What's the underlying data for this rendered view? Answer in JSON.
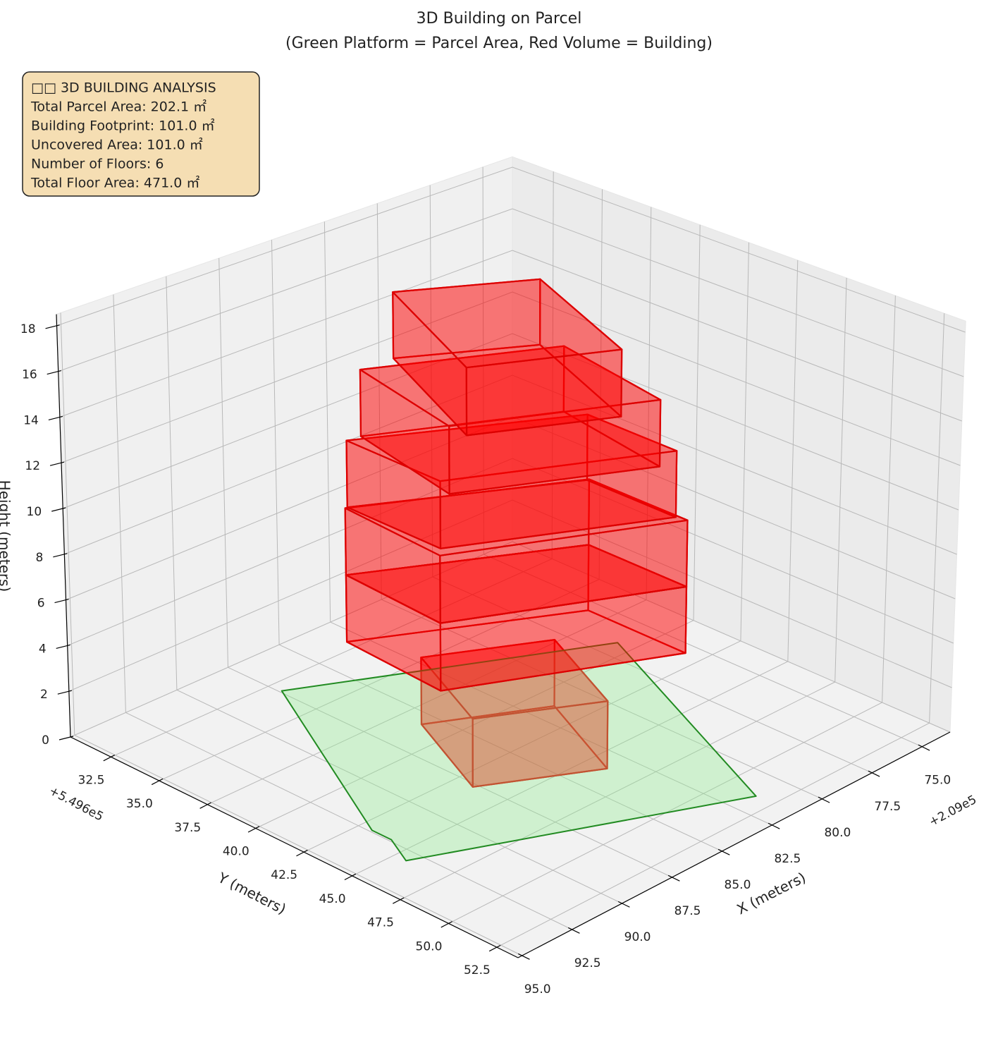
{
  "chart_data": {
    "type": "3d",
    "title": "3D Building on Parcel",
    "subtitle": "(Green Platform = Parcel Area, Red Volume = Building)",
    "info_box": [
      "□□ 3D BUILDING ANALYSIS",
      "Total Parcel Area: 202.1 ㎡",
      "Building Footprint: 101.0 ㎡",
      "Uncovered Area: 101.0 ㎡",
      "Number of Floors: 6",
      "Total Floor Area: 471.0 ㎡"
    ],
    "xlabel": "X (meters)",
    "ylabel": "Y (meters)",
    "zlabel": "Height (meters)",
    "x_offset": "+2.09e5",
    "y_offset": "+5.496e5",
    "xlim": [
      73.6,
      95.2
    ],
    "ylim": [
      30.4,
      53.6
    ],
    "zlim": [
      0,
      18.5
    ],
    "xticks": [
      {
        "value": 75,
        "label": "75.0"
      },
      77.5,
      {
        "value": 80,
        "label": "80.0"
      },
      82.5,
      {
        "value": 85,
        "label": "85.0"
      },
      87.5,
      {
        "value": 90,
        "label": "90.0"
      },
      92.5,
      {
        "value": 95,
        "label": "95.0"
      }
    ],
    "yticks": [
      32.5,
      {
        "value": 35,
        "label": "35.0"
      },
      37.5,
      {
        "value": 40,
        "label": "40.0"
      },
      42.5,
      {
        "value": 45,
        "label": "45.0"
      },
      47.5,
      {
        "value": 50,
        "label": "50.0"
      },
      52.5
    ],
    "zticks": [
      0,
      2,
      4,
      6,
      8,
      10,
      12,
      14,
      16,
      18
    ],
    "grid": true,
    "parcel": {
      "color": "#90ee90",
      "edge_color": "#228b22",
      "x": [
        87.4,
        76.6,
        81.4,
        93.1,
        92.4,
        92.4
      ],
      "y": [
        33.1,
        39.2,
        51.6,
        45.6,
        44.1,
        43.1
      ],
      "z": 0
    },
    "building": {
      "color": "#ff0000",
      "edge_color": "#dd0000",
      "floors": [
        {
          "z": [
            0,
            3
          ],
          "x": [
            85.7,
            81.5,
            83.5,
            87.7
          ],
          "y": [
            38.6,
            41.1,
            46.0,
            43.4
          ]
        },
        {
          "z": [
            3,
            6
          ],
          "x": [
            86.7,
            79.1,
            79.1,
            87.0
          ],
          "y": [
            35.8,
            40.3,
            45.4,
            41.0
          ]
        },
        {
          "z": [
            6,
            9
          ],
          "x": [
            86.7,
            79.1,
            79.1,
            87.0
          ],
          "y": [
            35.8,
            40.3,
            45.4,
            41.0
          ]
        },
        {
          "z": [
            9,
            12
          ],
          "x": [
            86.6,
            79.2,
            79.2,
            86.6
          ],
          "y": [
            35.8,
            40.3,
            44.9,
            40.6
          ]
        },
        {
          "z": [
            12,
            15
          ],
          "x": [
            86.0,
            79.6,
            80.5,
            87.1
          ],
          "y": [
            35.9,
            39.5,
            45.4,
            41.6
          ]
        },
        {
          "z": [
            15,
            18
          ],
          "x": [
            84.5,
            80.1,
            82.4,
            87.2
          ],
          "y": [
            36.0,
            38.8,
            45.4,
            42.6
          ]
        }
      ]
    }
  }
}
